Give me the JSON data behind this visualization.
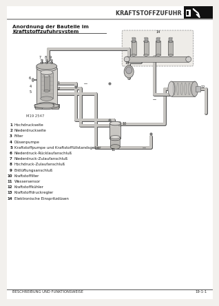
{
  "page_bg": "#f2f0ed",
  "header_title": "KRAFTSTOFFZUFUHR - Td5",
  "section_title_line1": "Anordnung der Bauteile im",
  "section_title_line2": "Kraftstoffzufuhrsystem",
  "diagram_ref": "M19 2547",
  "legend_items": [
    [
      "1",
      "Hochdruckseite"
    ],
    [
      "2",
      "Niederdruckseite"
    ],
    [
      "3",
      "Filter"
    ],
    [
      "4",
      "Düsenpumpe"
    ],
    [
      "5",
      "Kraftstoffpumpe und Kraftstoffüllstandsgeber"
    ],
    [
      "6",
      "Niederdruck-Rücklaufanschluß"
    ],
    [
      "7",
      "Niederdruck-Zulaufanschluß"
    ],
    [
      "8",
      "Hochdruck-Zulaufanschluß"
    ],
    [
      "9",
      "Entlüftungsanschluß"
    ],
    [
      "10",
      "Kraftstoffilter"
    ],
    [
      "11",
      "Wassersensor"
    ],
    [
      "12",
      "Kraftstoffkühler"
    ],
    [
      "13",
      "Kraftstoffdruckregler"
    ],
    [
      "14",
      "Elektronische Einspritzdüsen"
    ]
  ],
  "footer_left": "BESCHREIBUNG UND FUNKTIONSWEISE",
  "footer_right": "19-1-1",
  "text_color": "#1a1a1a",
  "gray1": "#c8c6c2",
  "gray2": "#b0aea8",
  "gray3": "#989690",
  "line_color": "#444444"
}
